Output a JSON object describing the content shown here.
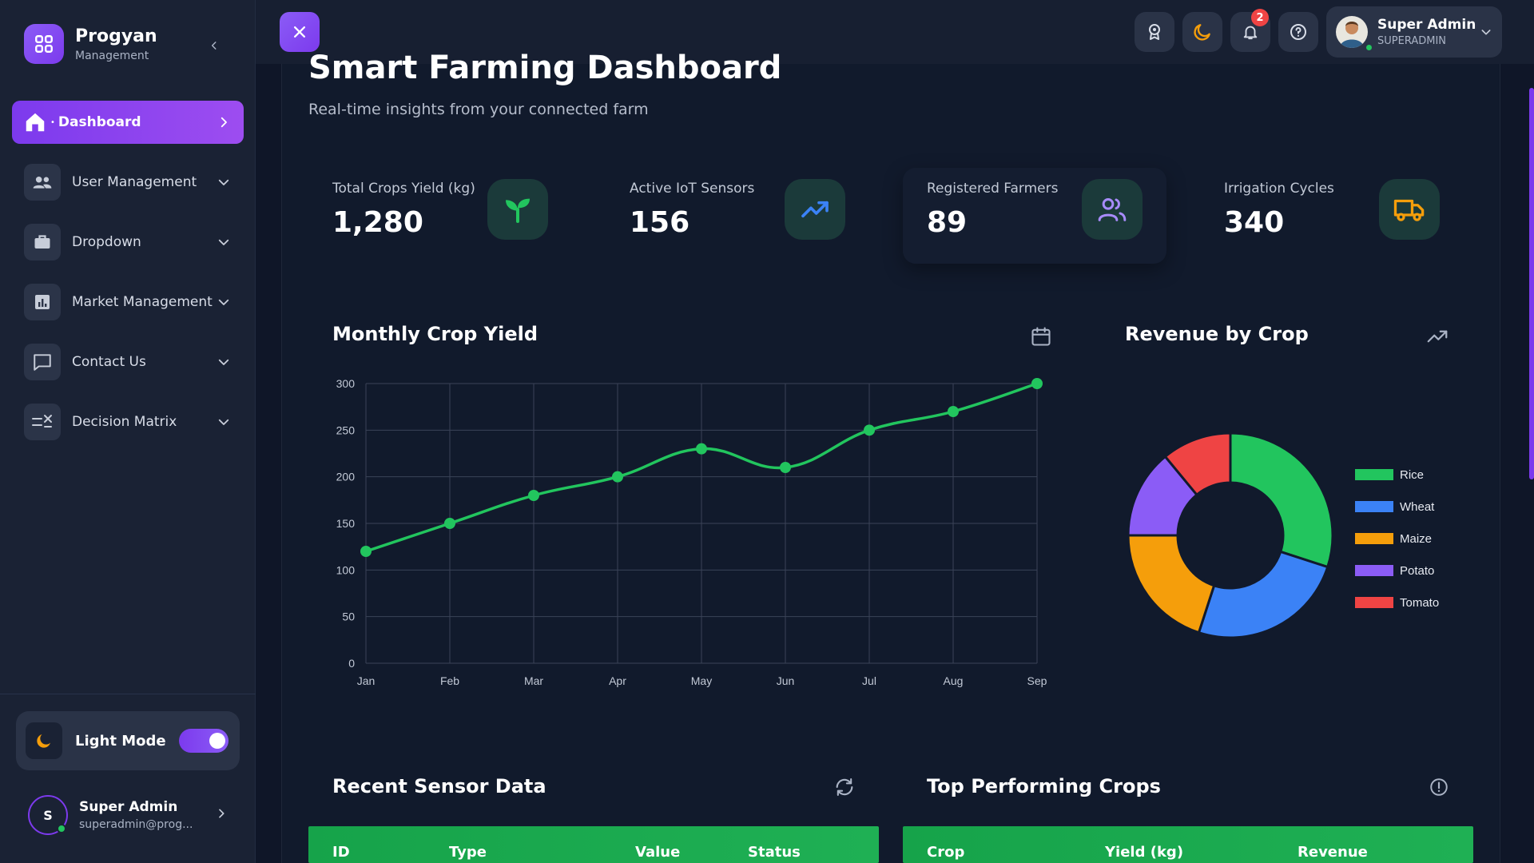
{
  "brand": {
    "name": "Progyan",
    "subtitle": "Management"
  },
  "sidebar": {
    "items": [
      {
        "label": "Dashboard",
        "icon": "home-icon",
        "active": true
      },
      {
        "label": "User Management",
        "icon": "users-icon"
      },
      {
        "label": "Dropdown",
        "icon": "briefcase-icon"
      },
      {
        "label": "Market Management",
        "icon": "bar-chart-icon"
      },
      {
        "label": "Contact Us",
        "icon": "message-icon"
      },
      {
        "label": "Decision Matrix",
        "icon": "matrix-icon"
      }
    ],
    "mode_label": "Light Mode",
    "user": {
      "initial": "S",
      "name": "Super Admin",
      "email": "superadmin@prog..."
    }
  },
  "topbar": {
    "notification_count": "2",
    "profile": {
      "name": "Super Admin",
      "role": "SUPERADMIN"
    }
  },
  "page": {
    "title": "Smart Farming Dashboard",
    "subtitle": "Real-time insights from your connected farm"
  },
  "stats": [
    {
      "label": "Total Crops Yield (kg)",
      "value": "1,280",
      "icon": "sprout-icon",
      "color": "#22c55e"
    },
    {
      "label": "Active IoT Sensors",
      "value": "156",
      "icon": "trending-up-icon",
      "color": "#3b82f6"
    },
    {
      "label": "Registered Farmers",
      "value": "89",
      "icon": "users-icon",
      "color": "#a78bfa"
    },
    {
      "label": "Irrigation Cycles",
      "value": "340",
      "icon": "truck-icon",
      "color": "#f59e0b"
    }
  ],
  "cards": {
    "monthly_yield_title": "Monthly Crop Yield",
    "revenue_title": "Revenue by Crop",
    "sensor_title": "Recent Sensor Data",
    "top_crops_title": "Top Performing Crops"
  },
  "sensor_table": {
    "columns": [
      "ID",
      "Type",
      "Value",
      "Status"
    ]
  },
  "crops_table": {
    "columns": [
      "Crop",
      "Yield (kg)",
      "Revenue"
    ]
  },
  "colors": {
    "accent": "#7c3aed",
    "green": "#22c55e",
    "blue": "#3b82f6",
    "orange": "#f59e0b",
    "purple": "#8b5cf6",
    "red": "#ef4444"
  },
  "chart_data": [
    {
      "type": "line",
      "categories": [
        "Jan",
        "Feb",
        "Mar",
        "Apr",
        "May",
        "Jun",
        "Jul",
        "Aug",
        "Sep"
      ],
      "series": [
        {
          "values": [
            120,
            150,
            180,
            200,
            230,
            210,
            250,
            270,
            300
          ],
          "color": "#22c55e"
        }
      ],
      "yticks": [
        0,
        50,
        100,
        150,
        200,
        250,
        300
      ],
      "ylim": [
        0,
        300
      ],
      "grid": true
    },
    {
      "type": "pie",
      "labels": [
        "Rice",
        "Wheat",
        "Maize",
        "Potato",
        "Tomato"
      ],
      "values": [
        30,
        25,
        20,
        14,
        11
      ],
      "colors": [
        "#22c55e",
        "#3b82f6",
        "#f59e0b",
        "#8b5cf6",
        "#ef4444"
      ],
      "legend": "right"
    }
  ]
}
